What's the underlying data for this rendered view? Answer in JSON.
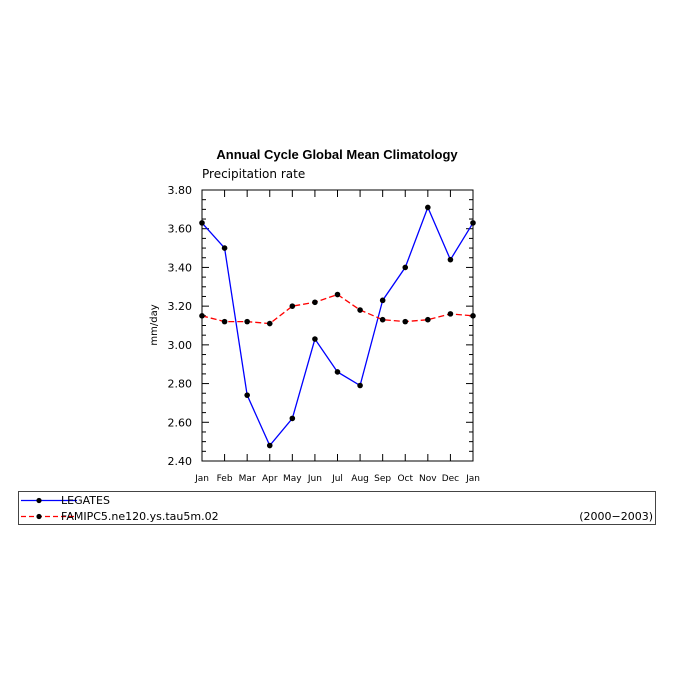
{
  "chart_data": {
    "type": "line",
    "title": "Annual Cycle Global Mean Climatology",
    "subtitle": "Precipitation rate",
    "ylabel": "mm/day",
    "xlabel": "",
    "ylim": [
      2.4,
      3.8
    ],
    "yticks": [
      "2.40",
      "2.60",
      "2.80",
      "3.00",
      "3.20",
      "3.40",
      "3.60",
      "3.80"
    ],
    "categories": [
      "Jan",
      "Feb",
      "Mar",
      "Apr",
      "May",
      "Jun",
      "Jul",
      "Aug",
      "Sep",
      "Oct",
      "Nov",
      "Dec",
      "Jan"
    ],
    "series": [
      {
        "name": "LEGATES",
        "color": "#0000ff",
        "dashed": false,
        "values": [
          3.63,
          3.5,
          2.74,
          2.48,
          2.62,
          3.03,
          2.86,
          2.79,
          3.23,
          3.4,
          3.71,
          3.44,
          3.63
        ]
      },
      {
        "name": "FAMIPC5.ne120.ys.tau5m.02",
        "color": "#ff0000",
        "dashed": true,
        "values": [
          3.15,
          3.12,
          3.12,
          3.11,
          3.2,
          3.22,
          3.26,
          3.18,
          3.13,
          3.12,
          3.13,
          3.16,
          3.15
        ]
      }
    ],
    "legend_period": "(2000−2003)",
    "legend_position": "bottom"
  }
}
